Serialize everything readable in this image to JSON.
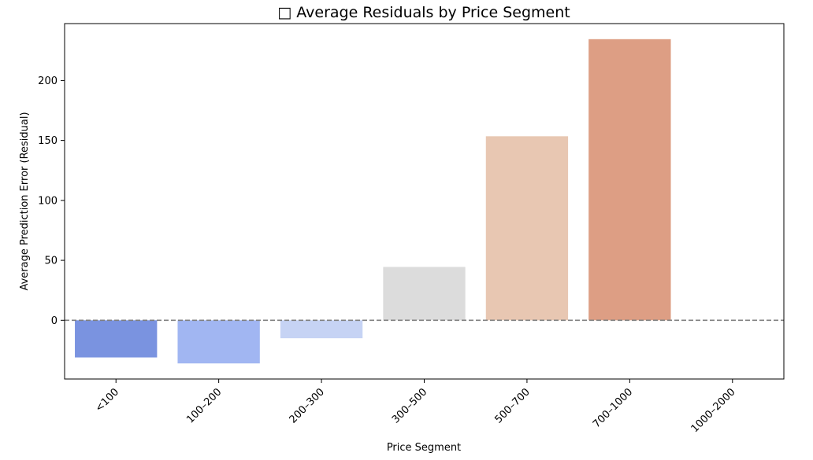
{
  "chart_data": {
    "type": "bar",
    "title": "□ Average Residuals by Price Segment",
    "xlabel": "Price Segment",
    "ylabel": "Average Prediction Error (Residual)",
    "categories": [
      "<100",
      "100–200",
      "200–300",
      "300–500",
      "500–700",
      "700–1000",
      "1000–2000"
    ],
    "values": [
      -31,
      -36,
      -15,
      44.5,
      153.5,
      234.5,
      null
    ],
    "colors": [
      "#7a93e0",
      "#a1b6f2",
      "#c6d3f4",
      "#dcdcdc",
      "#e8c7b2",
      "#dd9e84",
      null
    ],
    "yticks": [
      0,
      50,
      100,
      150,
      200
    ],
    "ylim": [
      -49,
      247.5
    ],
    "reference_line": {
      "y": 0,
      "style": "dashed",
      "color": "#808080"
    },
    "grid": false,
    "legend": false
  }
}
